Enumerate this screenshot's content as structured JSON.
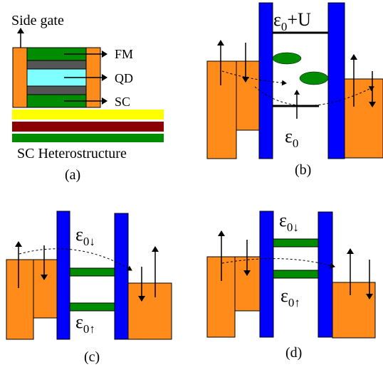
{
  "panel_a": {
    "label": "(a)",
    "side_gate": "Side gate",
    "fm": "FM",
    "qd": "QD",
    "sc": "SC",
    "heterostructure": "SC Heterostructure"
  },
  "panel_b": {
    "label": "(b)",
    "upper_level": {
      "base": "ε",
      "sub": "0",
      "tail": "+U"
    },
    "lower_level": {
      "base": "ε",
      "sub": "0"
    }
  },
  "panel_c": {
    "label": "(c)",
    "level_down": {
      "base": "ε",
      "sub": "0↓"
    },
    "level_up": {
      "base": "ε",
      "sub": "0↑"
    }
  },
  "panel_d": {
    "label": "(d)",
    "level_down": {
      "base": "ε",
      "sub": "0↓"
    },
    "level_up": {
      "base": "ε",
      "sub": "0↑"
    }
  },
  "colors": {
    "lead": "#FF8C1A",
    "barrier": "#0000FF",
    "green": "#008C00",
    "cyan": "#7FFFFF",
    "gray": "#555555",
    "yellow": "#FFFF00",
    "maroon": "#8B0000"
  }
}
